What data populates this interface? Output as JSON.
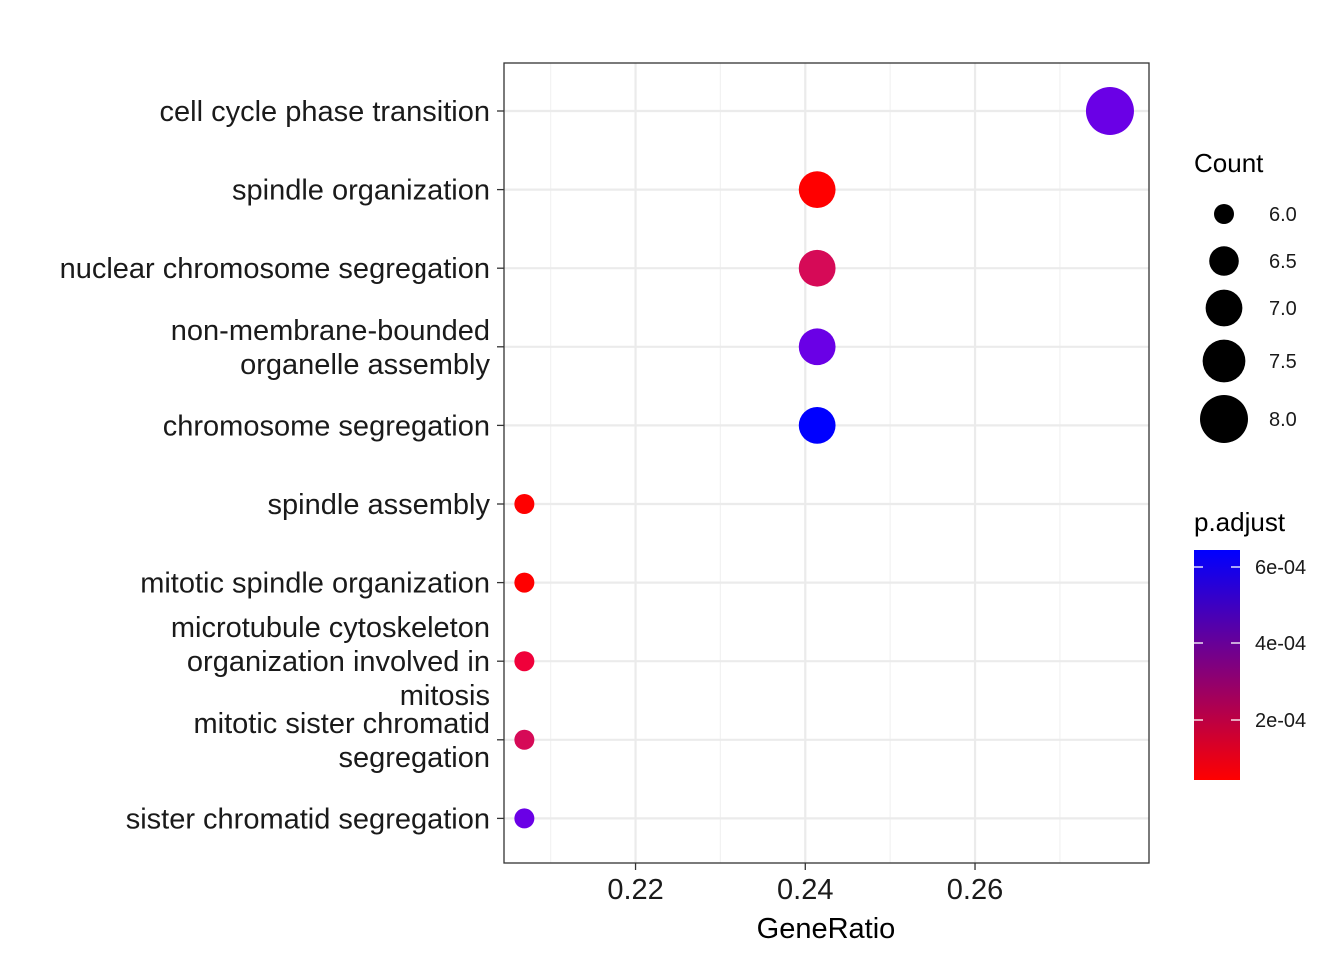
{
  "chart_data": {
    "type": "scatter",
    "xlabel": "GeneRatio",
    "ylabel": "",
    "title": "",
    "xlim": [
      0.2045,
      0.2805
    ],
    "xticks": [
      0.22,
      0.24,
      0.26
    ],
    "xtick_labels": [
      "0.22",
      "0.24",
      "0.26"
    ],
    "grid": true,
    "categories": [
      [
        "cell cycle phase transition"
      ],
      [
        "spindle organization"
      ],
      [
        "nuclear chromosome segregation"
      ],
      [
        "non-membrane-bounded",
        "organelle assembly"
      ],
      [
        "chromosome segregation"
      ],
      [
        "spindle assembly"
      ],
      [
        "mitotic spindle organization"
      ],
      [
        "microtubule cytoskeleton",
        "organization involved in",
        "mitosis"
      ],
      [
        "mitotic sister chromatid",
        "segregation"
      ],
      [
        "sister chromatid segregation"
      ]
    ],
    "points": [
      {
        "x": 0.2759,
        "count": 8,
        "color": "#6a00e6"
      },
      {
        "x": 0.2414,
        "count": 7,
        "color": "#ff0000"
      },
      {
        "x": 0.2414,
        "count": 7,
        "color": "#d60a57"
      },
      {
        "x": 0.2414,
        "count": 7,
        "color": "#6a00e6"
      },
      {
        "x": 0.2414,
        "count": 7,
        "color": "#0000ff"
      },
      {
        "x": 0.2069,
        "count": 6,
        "color": "#ff0000"
      },
      {
        "x": 0.2069,
        "count": 6,
        "color": "#ff0000"
      },
      {
        "x": 0.2069,
        "count": 6,
        "color": "#f0003a"
      },
      {
        "x": 0.2069,
        "count": 6,
        "color": "#d60a57"
      },
      {
        "x": 0.2069,
        "count": 6,
        "color": "#6a00e6"
      }
    ],
    "legend_size": {
      "title": "Count",
      "values": [
        6.0,
        6.5,
        7.0,
        7.5,
        8.0
      ],
      "labels": [
        "6.0",
        "6.5",
        "7.0",
        "7.5",
        "8.0"
      ],
      "placement": "right"
    },
    "legend_color": {
      "title": "p.adjust",
      "labels": [
        "6e-04",
        "4e-04",
        "2e-04"
      ],
      "low_color": "#ff0000",
      "high_color": "#0000ff",
      "placement": "right"
    }
  }
}
